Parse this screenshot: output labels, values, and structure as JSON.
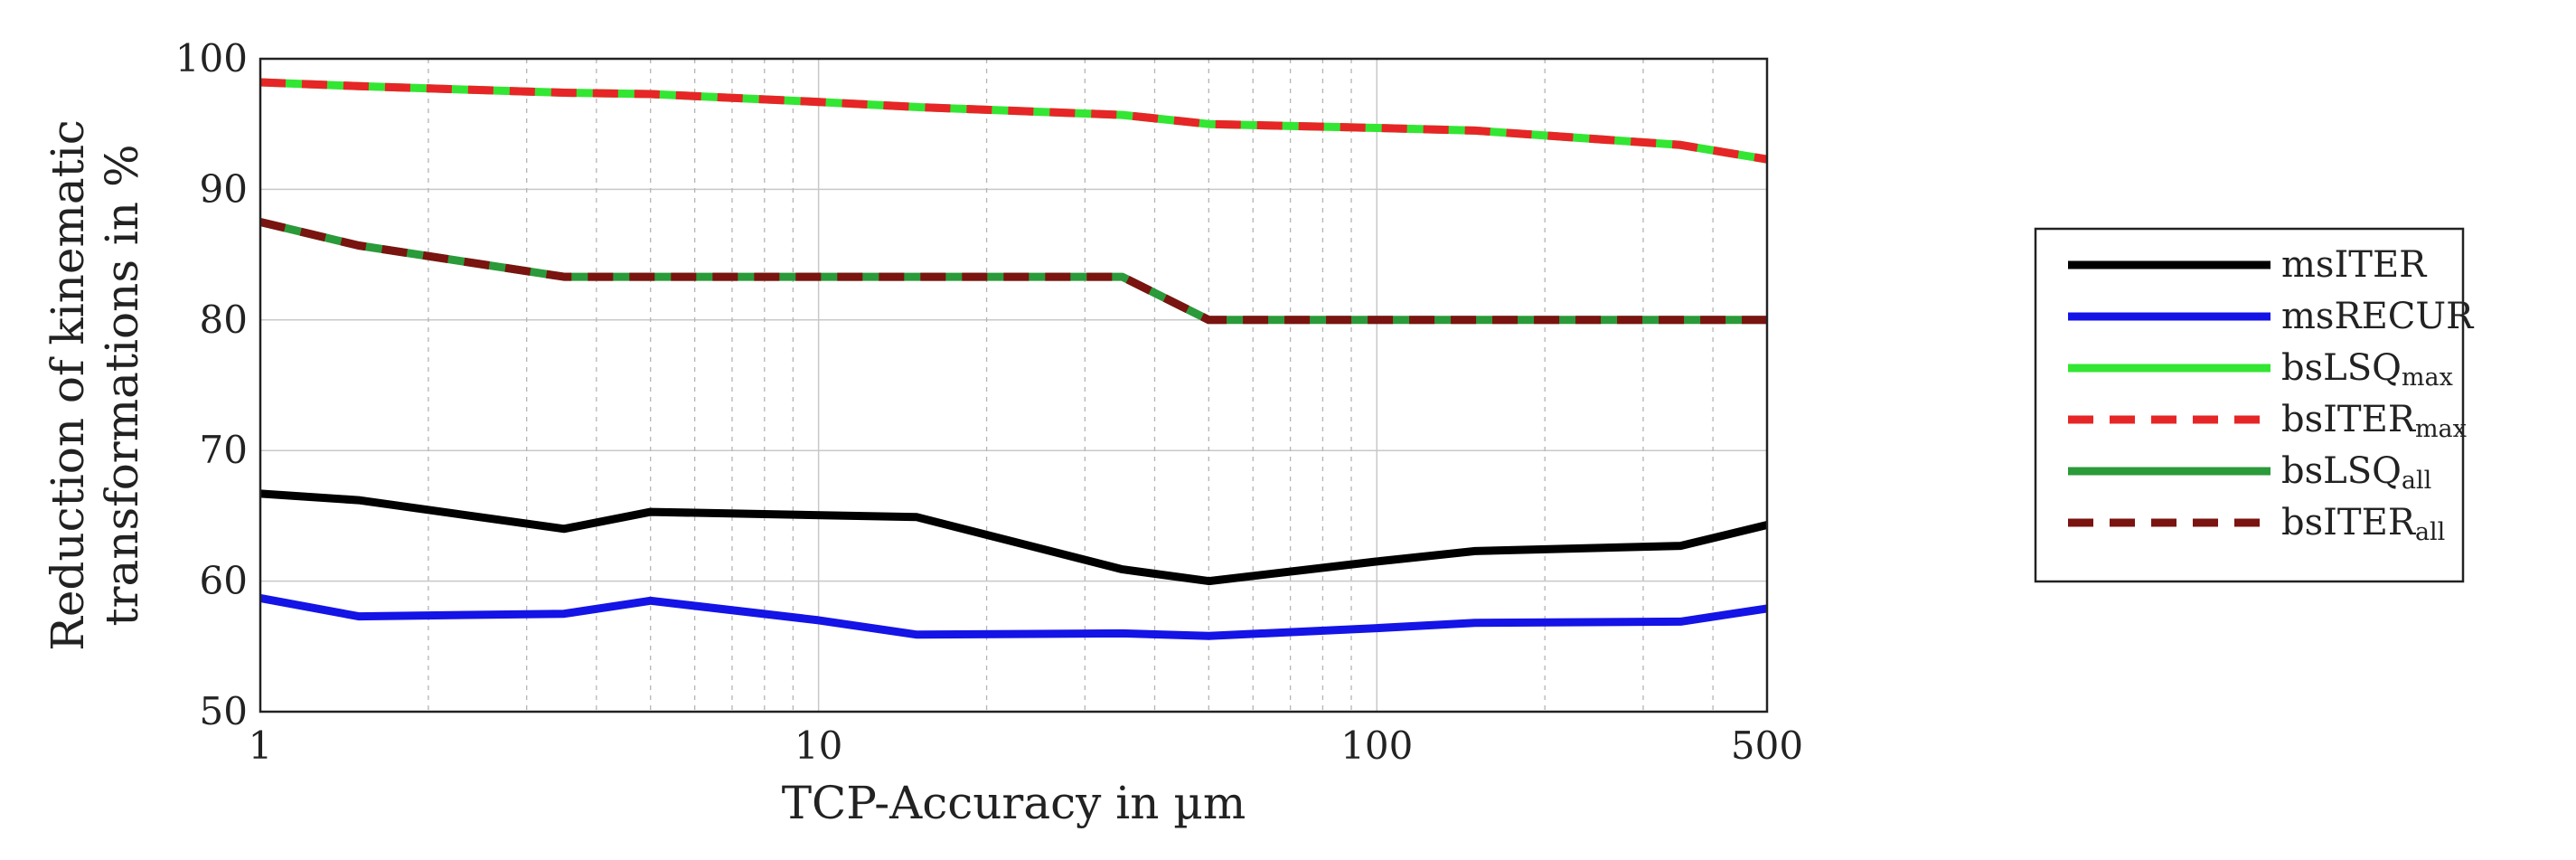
{
  "chart_data": {
    "type": "line",
    "xlabel": "TCP-Accuracy in µm",
    "ylabel_lines": [
      "Reduction of kinematic",
      "transformations in %"
    ],
    "x_scale": "log",
    "xlim": [
      1,
      500
    ],
    "ylim": [
      50,
      100
    ],
    "x_ticks": [
      {
        "value": 1,
        "label": "1"
      },
      {
        "value": 10,
        "label": "10"
      },
      {
        "value": 100,
        "label": "100"
      },
      {
        "value": 500,
        "label": "500"
      }
    ],
    "y_ticks": [
      {
        "value": 50,
        "label": "50"
      },
      {
        "value": 60,
        "label": "60"
      },
      {
        "value": 70,
        "label": "70"
      },
      {
        "value": 80,
        "label": "80"
      },
      {
        "value": 90,
        "label": "90"
      },
      {
        "value": 100,
        "label": "100"
      }
    ],
    "grid": true,
    "legend_position": "right",
    "series": [
      {
        "name": "msITER",
        "name_base": "msITER",
        "name_sub": "",
        "color": "#000000",
        "dash": false,
        "x": [
          1,
          1.5,
          3.5,
          5,
          15,
          35,
          50,
          100,
          150,
          350,
          500
        ],
        "y": [
          66.7,
          66.2,
          64.0,
          65.3,
          64.9,
          60.9,
          60.0,
          61.5,
          62.3,
          62.7,
          64.3
        ]
      },
      {
        "name": "msRECUR",
        "name_base": "msRECUR",
        "name_sub": "",
        "color": "#1414e6",
        "dash": false,
        "x": [
          1,
          1.5,
          3.5,
          5,
          10,
          15,
          35,
          50,
          100,
          150,
          350,
          500
        ],
        "y": [
          58.7,
          57.3,
          57.5,
          58.5,
          57.0,
          55.9,
          56.0,
          55.8,
          56.4,
          56.8,
          56.9,
          57.9
        ]
      },
      {
        "name": "bsLSQmax",
        "name_base": "bsLSQ",
        "name_sub": "max",
        "color": "#33e633",
        "dash": false,
        "x": [
          1,
          1.5,
          3.5,
          5,
          10,
          15,
          35,
          50,
          100,
          150,
          350,
          500
        ],
        "y": [
          98.2,
          97.9,
          97.4,
          97.3,
          96.7,
          96.3,
          95.7,
          95.0,
          94.7,
          94.5,
          93.4,
          92.3
        ]
      },
      {
        "name": "bsITERmax",
        "name_base": "bsITER",
        "name_sub": "max",
        "color": "#e62626",
        "dash": true,
        "x": [
          1,
          1.5,
          3.5,
          5,
          10,
          15,
          35,
          50,
          100,
          150,
          350,
          500
        ],
        "y": [
          98.2,
          97.9,
          97.4,
          97.3,
          96.7,
          96.3,
          95.7,
          95.0,
          94.7,
          94.5,
          93.4,
          92.3
        ]
      },
      {
        "name": "bsLSQall",
        "name_base": "bsLSQ",
        "name_sub": "all",
        "color": "#2b9a3a",
        "dash": false,
        "x": [
          1,
          1.5,
          3.5,
          5,
          10,
          15,
          35,
          50,
          100,
          150,
          350,
          500
        ],
        "y": [
          87.5,
          85.7,
          83.3,
          83.3,
          83.3,
          83.3,
          83.3,
          80.0,
          80.0,
          80.0,
          80.0,
          80.0
        ]
      },
      {
        "name": "bsITERall",
        "name_base": "bsITER",
        "name_sub": "all",
        "color": "#7a1410",
        "dash": true,
        "x": [
          1,
          1.5,
          3.5,
          5,
          10,
          15,
          35,
          50,
          100,
          150,
          350,
          500
        ],
        "y": [
          87.5,
          85.7,
          83.3,
          83.3,
          83.3,
          83.3,
          83.3,
          80.0,
          80.0,
          80.0,
          80.0,
          80.0
        ]
      }
    ]
  }
}
